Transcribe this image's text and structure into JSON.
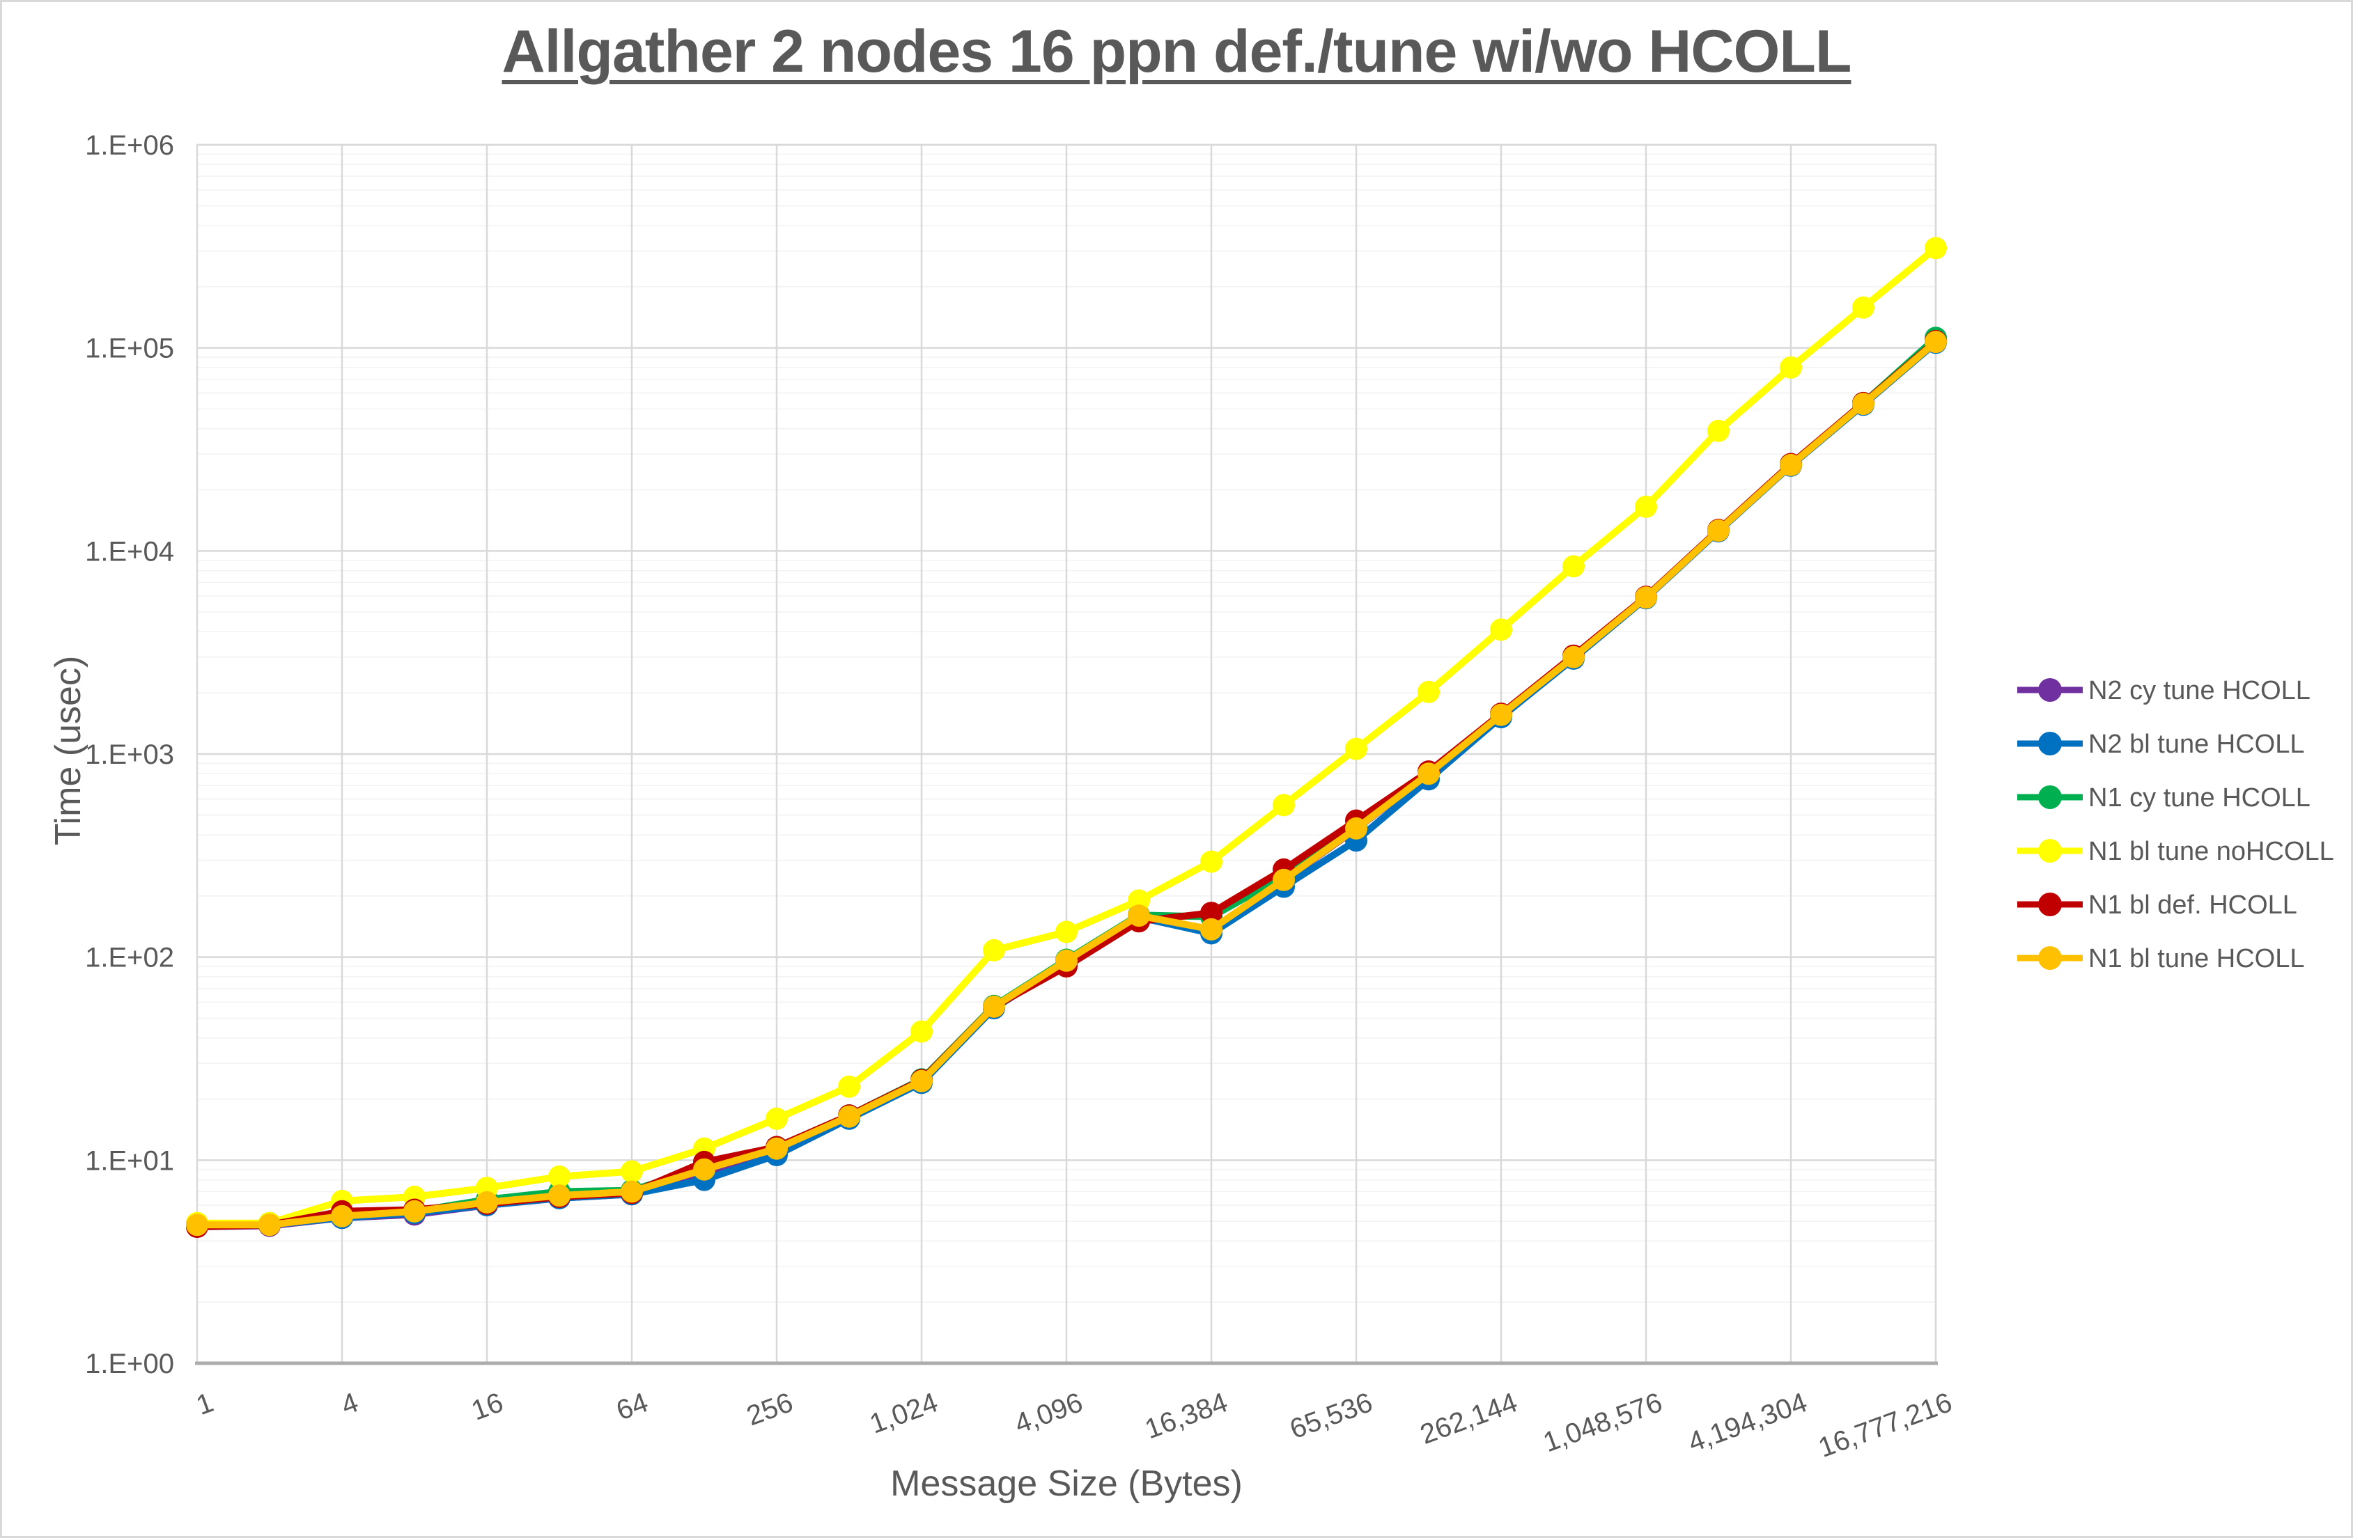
{
  "page": {
    "background": "#ffffff",
    "border_color": "#d9d9d9",
    "text_color": "#595959"
  },
  "chart_data": {
    "type": "line",
    "title": "Allgather 2 nodes 16 ppn def./tune wi/wo HCOLL",
    "xlabel": "Message Size (Bytes)",
    "ylabel": "Time (usec)",
    "x_scale": "log2",
    "y_scale": "log10",
    "xlim": [
      1,
      16777216
    ],
    "ylim": [
      1,
      1000000
    ],
    "grid": "major+minor horizontal, major vertical",
    "legend_position": "right",
    "x": [
      1,
      2,
      4,
      8,
      16,
      32,
      64,
      128,
      256,
      512,
      1024,
      2048,
      4096,
      8192,
      16384,
      32768,
      65536,
      131072,
      262144,
      524288,
      1048576,
      2097152,
      4194304,
      8388608,
      16777216
    ],
    "x_tick_labels": [
      "1",
      "4",
      "16",
      "64",
      "256",
      "1,024",
      "4,096",
      "16,384",
      "65,536",
      "262,144",
      "1,048,576",
      "4,194,304",
      "16,777,216"
    ],
    "y_tick_labels": [
      "1.E+00",
      "1.E+01",
      "1.E+02",
      "1.E+03",
      "1.E+04",
      "1.E+05",
      "1.E+06"
    ],
    "series": [
      {
        "name": "N2 cy tune HCOLL",
        "color": "#7030A0",
        "values": [
          4.7,
          4.75,
          5.2,
          5.4,
          6.0,
          6.5,
          6.8,
          8.6,
          11.2,
          16.2,
          24.2,
          56.5,
          95,
          158,
          136,
          238,
          428,
          798,
          1555,
          2990,
          5890,
          12580,
          26450,
          52800,
          106500
        ]
      },
      {
        "name": "N2 bl tune HCOLL",
        "color": "#0070C0",
        "values": [
          4.75,
          4.8,
          5.2,
          5.5,
          6.0,
          6.5,
          6.8,
          8.0,
          10.6,
          16.0,
          24.0,
          56,
          94,
          157,
          131,
          222,
          375,
          750,
          1520,
          2950,
          5850,
          12500,
          26300,
          52500,
          106000
        ]
      },
      {
        "name": "N1 cy tune HCOLL",
        "color": "#00B050",
        "values": [
          4.85,
          4.9,
          5.4,
          5.6,
          6.4,
          7.0,
          7.1,
          9.2,
          11.6,
          16.6,
          25,
          57.5,
          97,
          161,
          158,
          250,
          440,
          810,
          1570,
          3020,
          5920,
          12650,
          26700,
          53500,
          112000
        ]
      },
      {
        "name": "N1 bl tune noHCOLL",
        "color": "#FFFF00",
        "values": [
          4.9,
          4.9,
          6.3,
          6.6,
          7.3,
          8.3,
          8.8,
          11.4,
          16,
          23,
          43,
          108,
          133,
          190,
          295,
          560,
          1060,
          2020,
          4100,
          8400,
          16500,
          39000,
          80000,
          158000,
          310000
        ]
      },
      {
        "name": "N1 bl def. HCOLL",
        "color": "#C00000",
        "values": [
          4.7,
          4.8,
          5.6,
          5.7,
          6.1,
          6.6,
          6.9,
          9.8,
          11.6,
          16.6,
          24.8,
          57,
          90,
          150,
          165,
          270,
          470,
          820,
          1580,
          3050,
          5950,
          12700,
          26800,
          53500,
          108000
        ]
      },
      {
        "name": "N1 bl tune HCOLL",
        "color": "#FFC000",
        "values": [
          4.8,
          4.8,
          5.3,
          5.6,
          6.2,
          6.7,
          7.0,
          9.0,
          11.4,
          16.4,
          24.5,
          57,
          96,
          160,
          137,
          240,
          430,
          800,
          1560,
          3000,
          5900,
          12600,
          26500,
          53000,
          107000
        ]
      }
    ]
  }
}
